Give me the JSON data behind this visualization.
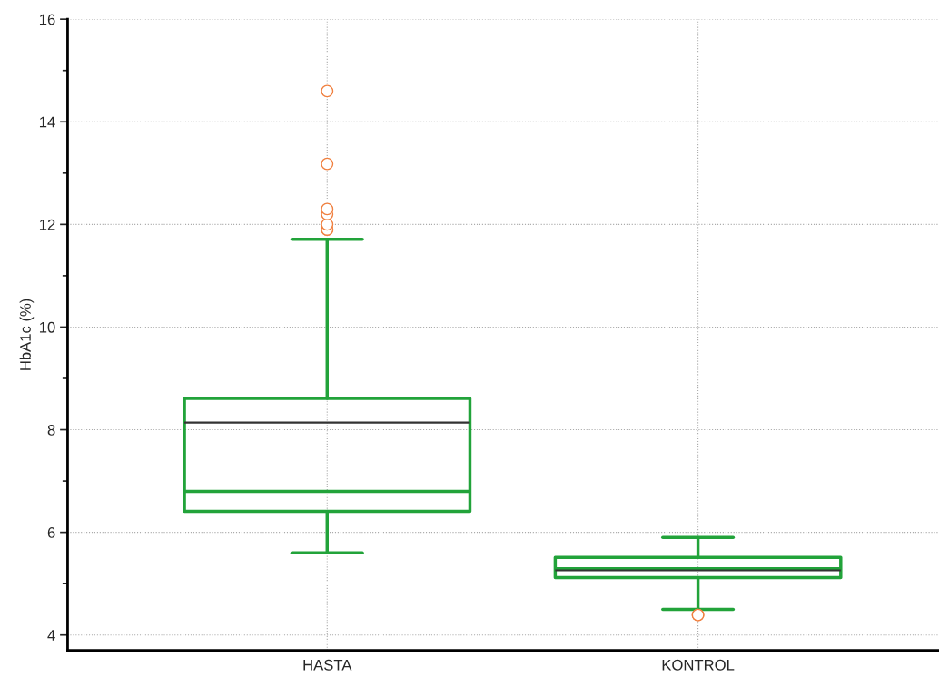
{
  "chart_data": {
    "type": "box",
    "ylabel": "HbA1c (%)",
    "categories": [
      "HASTA",
      "KONTROL"
    ],
    "boxes": [
      {
        "low": 5.6,
        "q1": 6.41,
        "median": 6.8,
        "q3": 8.61,
        "high": 11.71,
        "mean": 8.14,
        "outliers": [
          11.9,
          11.9,
          12.0,
          12.2,
          12.3,
          13.18,
          14.6
        ]
      },
      {
        "low": 4.5,
        "q1": 5.12,
        "median": 5.29,
        "q3": 5.51,
        "high": 5.9,
        "mean": 5.26,
        "outliers": [
          4.39,
          4.39
        ]
      }
    ],
    "color": "#22a33a",
    "ylim": [
      3.7,
      16
    ],
    "yticks": [
      4,
      {
        "value": 5,
        "label": null
      },
      6,
      {
        "value": 7,
        "label": null
      },
      8,
      {
        "value": 9,
        "label": null
      },
      10,
      {
        "value": 11,
        "label": null
      },
      12,
      {
        "value": 13,
        "label": null
      },
      14,
      {
        "value": 15,
        "label": null
      },
      16
    ],
    "grid": true
  }
}
